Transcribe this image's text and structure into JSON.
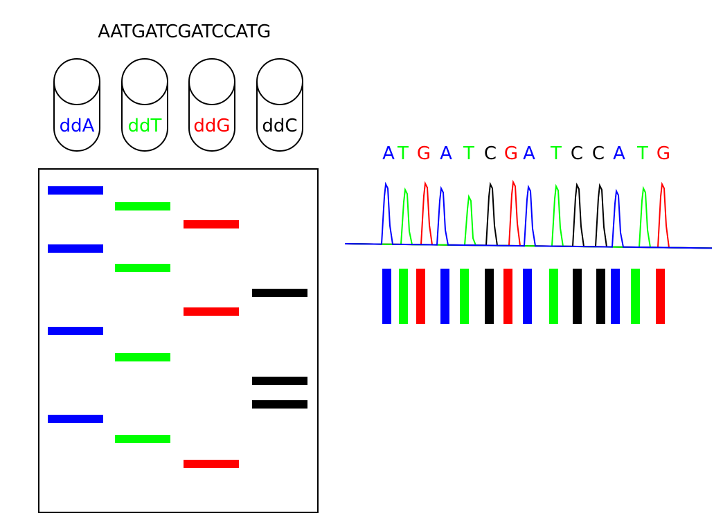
{
  "colors": {
    "A": "#0000ff",
    "T": "#00ff00",
    "G": "#ff0000",
    "C": "#000000"
  },
  "template_sequence": "AATGATCGATCCATG",
  "tubes": [
    {
      "label": "ddA",
      "base": "A"
    },
    {
      "label": "ddT",
      "base": "T"
    },
    {
      "label": "ddG",
      "base": "G"
    },
    {
      "label": "ddC",
      "base": "C"
    }
  ],
  "read_sequence": [
    "A",
    "T",
    "G",
    "A",
    "T",
    "C",
    "G",
    "A",
    "T",
    "C",
    "C",
    "A",
    "T",
    "G"
  ]
}
